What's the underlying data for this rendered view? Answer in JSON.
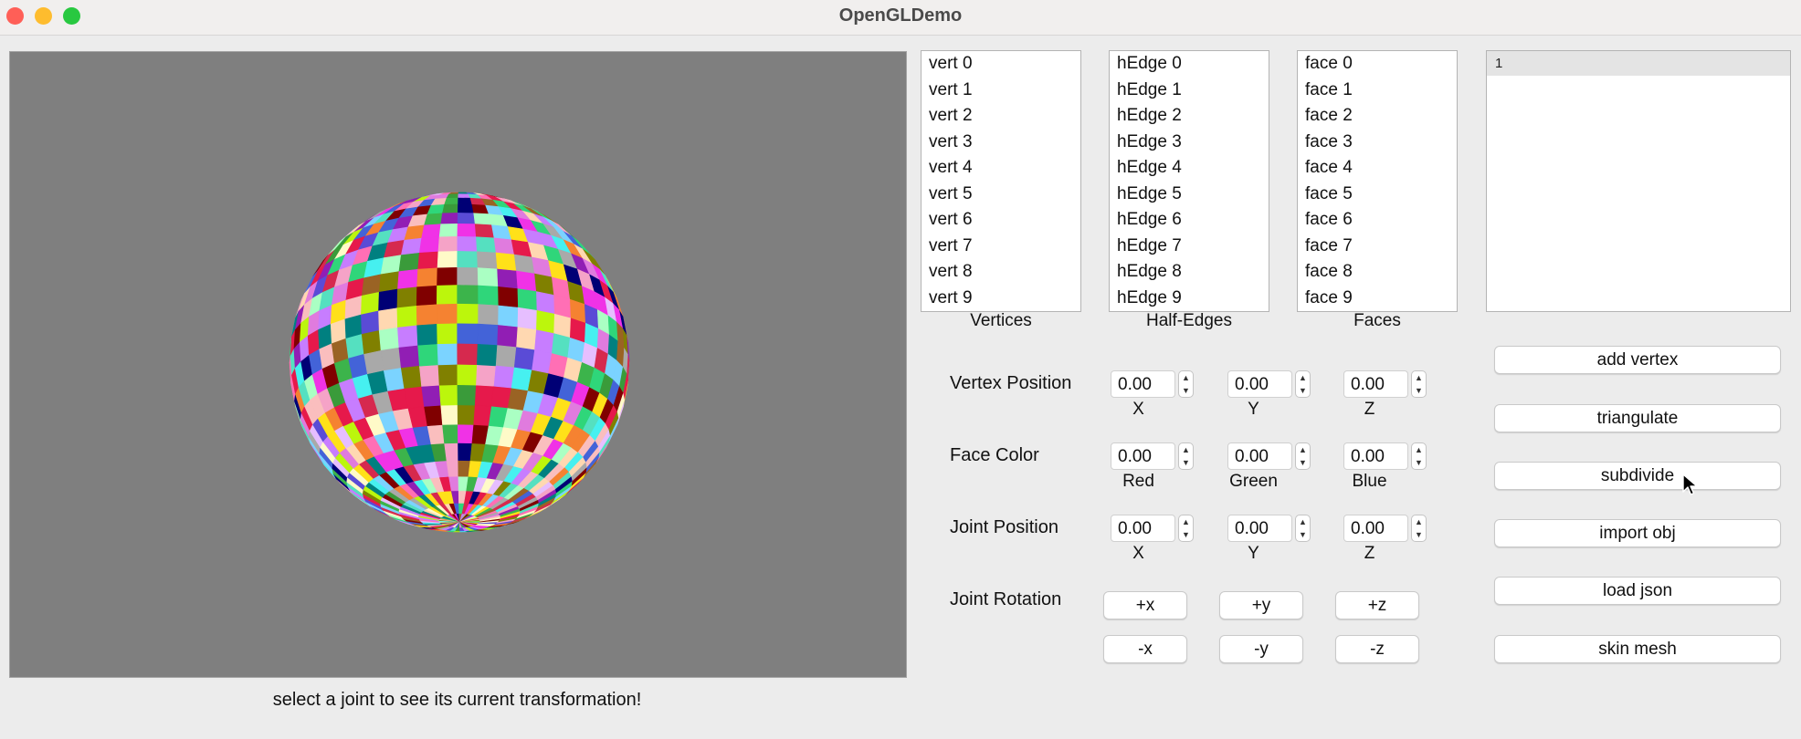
{
  "window": {
    "title": "OpenGLDemo",
    "controls": [
      {
        "name": "close",
        "color": "#ff5f57"
      },
      {
        "name": "minimize",
        "color": "#febc2e"
      },
      {
        "name": "zoom",
        "color": "#28c840"
      }
    ]
  },
  "viewport": {
    "background": "#7f7f7f",
    "object": "textured sphere with randomly colored quad faces",
    "status": "select a joint to see its current transformation!"
  },
  "lists": {
    "vertices": {
      "label": "Vertices",
      "items": [
        "vert 0",
        "vert 1",
        "vert 2",
        "vert 3",
        "vert 4",
        "vert 5",
        "vert 6",
        "vert 7",
        "vert 8",
        "vert 9"
      ]
    },
    "half_edges": {
      "label": "Half-Edges",
      "items": [
        "hEdge 0",
        "hEdge 1",
        "hEdge 2",
        "hEdge 3",
        "hEdge 4",
        "hEdge 5",
        "hEdge 6",
        "hEdge 7",
        "hEdge 8",
        "hEdge 9"
      ]
    },
    "faces": {
      "label": "Faces",
      "items": [
        "face 0",
        "face 1",
        "face 2",
        "face 3",
        "face 4",
        "face 5",
        "face 6",
        "face 7",
        "face 8",
        "face 9"
      ]
    },
    "joints": {
      "items": [
        "1"
      ]
    }
  },
  "vertex_position": {
    "label": "Vertex Position",
    "x": {
      "value": "0.00",
      "caption": "X"
    },
    "y": {
      "value": "0.00",
      "caption": "Y"
    },
    "z": {
      "value": "0.00",
      "caption": "Z"
    }
  },
  "face_color": {
    "label": "Face Color",
    "red": {
      "value": "0.00",
      "caption": "Red"
    },
    "green": {
      "value": "0.00",
      "caption": "Green"
    },
    "blue": {
      "value": "0.00",
      "caption": "Blue"
    }
  },
  "joint_position": {
    "label": "Joint Position",
    "x": {
      "value": "0.00",
      "caption": "X"
    },
    "y": {
      "value": "0.00",
      "caption": "Y"
    },
    "z": {
      "value": "0.00",
      "caption": "Z"
    }
  },
  "joint_rotation": {
    "label": "Joint Rotation",
    "plus_x": "+x",
    "plus_y": "+y",
    "plus_z": "+z",
    "minus_x": "-x",
    "minus_y": "-y",
    "minus_z": "-z"
  },
  "actions": {
    "add_vertex": "add vertex",
    "triangulate": "triangulate",
    "subdivide": "subdivide",
    "import_obj": "import obj",
    "load_json": "load json",
    "skin_mesh": "skin mesh"
  }
}
